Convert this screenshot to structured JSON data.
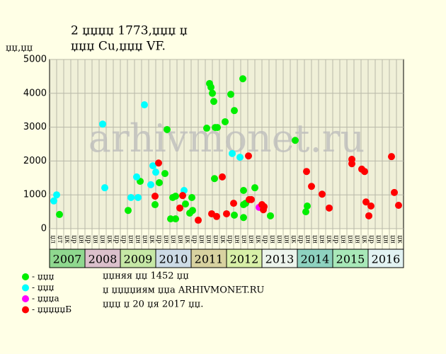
{
  "chart_data": {
    "type": "scatter",
    "title": "2 џџџџ 1773,џџџ џ",
    "subtitle": "џџџ Cu,џџџ VF.",
    "y_label": "џџ,џџ",
    "watermark": "arhivmonet.ru",
    "notes": [
      "џџняя џџ 1452 џџ",
      "џ џџџџиям џџа ARHIVMONET.RU",
      "џџџ џ 20 џя 2017 џџ."
    ],
    "xlim": [
      2007,
      2017
    ],
    "ylim": [
      0,
      5000
    ],
    "yticks": [
      0,
      1000,
      2000,
      3000,
      4000,
      5000
    ],
    "grid": true,
    "year_labels": [
      "2007",
      "2008",
      "2009",
      "2010",
      "2011",
      "2012",
      "2013",
      "2014",
      "2015",
      "2016"
    ],
    "year_colors": [
      "#8fd88f",
      "#dcc0cc",
      "#c6e8a6",
      "#cddbe6",
      "#d8d2a0",
      "#d8f0a8",
      "#ecf4ec",
      "#8ed2c0",
      "#a8e8b8",
      "#e2f2f2"
    ],
    "column_labels": [
      "џл",
      "џт",
      "џк",
      "џр",
      "џн",
      "џр",
      "џн",
      "џн",
      "џк",
      "џр",
      "џр",
      "џн",
      "џн",
      "џн",
      "џк",
      "џр",
      "џн",
      "џн",
      "џн",
      "џк",
      "џр",
      "џн",
      "џн",
      "џн",
      "џк",
      "џр",
      "џн",
      "џн",
      "џн",
      "џк",
      "џр",
      "џн",
      "џн",
      "џн",
      "џк",
      "џр",
      "џн",
      "џн",
      "џн",
      "џк",
      "џр",
      "џн",
      "џн",
      "џн",
      "џк",
      "џр",
      "џн",
      "џн",
      "џн",
      "џк"
    ],
    "series": [
      {
        "name": "- џџџ",
        "color": "#00ee00",
        "x": [
          2007.28,
          2009.22,
          2009.98,
          2010.1,
          2010.26,
          2010.32,
          2010.42,
          2010.48,
          2010.56,
          2010.56,
          2010.84,
          2010.96,
          2011.04,
          2011.02,
          2009.56,
          2011.44,
          2011.52,
          2011.56,
          2011.6,
          2011.64,
          2011.66,
          2011.68,
          2011.74,
          2011.96,
          2012.12,
          2012.22,
          2012.22,
          2012.46,
          2012.48,
          2012.48,
          2012.48,
          2012.54,
          2012.8,
          2013.24,
          2013.94,
          2014.24,
          2014.28
        ],
        "values": [
          420,
          540,
          710,
          1360,
          1630,
          2930,
          290,
          920,
          290,
          960,
          730,
          460,
          540,
          920,
          1400,
          2970,
          4290,
          4180,
          4000,
          3760,
          1480,
          2990,
          2990,
          3160,
          3970,
          3490,
          400,
          4430,
          1130,
          710,
          330,
          750,
          1210,
          380,
          2610,
          500,
          670
        ]
      },
      {
        "name": "- џџџ",
        "color": "#00ffff",
        "x": [
          2007.12,
          2007.2,
          2008.5,
          2008.56,
          2009.3,
          2009.46,
          2009.5,
          2009.68,
          2009.86,
          2009.92,
          2010.0,
          2010.8,
          2012.16,
          2012.38
        ],
        "values": [
          820,
          1000,
          3090,
          1210,
          920,
          1530,
          920,
          3660,
          1300,
          1860,
          1670,
          1130,
          2220,
          2110
        ]
      },
      {
        "name": "- џџџа",
        "color": "#ff00ff",
        "x": [
          2012.92
        ],
        "values": [
          630
        ]
      },
      {
        "name": "- џџџџџБ",
        "color": "#ff0000",
        "x": [
          2009.98,
          2010.08,
          2010.68,
          2010.76,
          2011.2,
          2011.58,
          2011.72,
          2011.88,
          2012.0,
          2012.2,
          2012.62,
          2012.64,
          2012.7,
          2013.0,
          2013.06,
          2013.04,
          2014.26,
          2014.4,
          2014.7,
          2014.9,
          2015.54,
          2015.54,
          2015.82,
          2015.9,
          2015.94,
          2016.02,
          2016.08,
          2016.66,
          2016.74,
          2016.86
        ],
        "values": [
          960,
          1940,
          610,
          980,
          250,
          440,
          360,
          1530,
          440,
          750,
          2150,
          860,
          860,
          710,
          650,
          560,
          1690,
          1250,
          1020,
          610,
          2050,
          1920,
          1760,
          1690,
          790,
          380,
          670,
          2130,
          1070,
          690
        ]
      }
    ]
  }
}
